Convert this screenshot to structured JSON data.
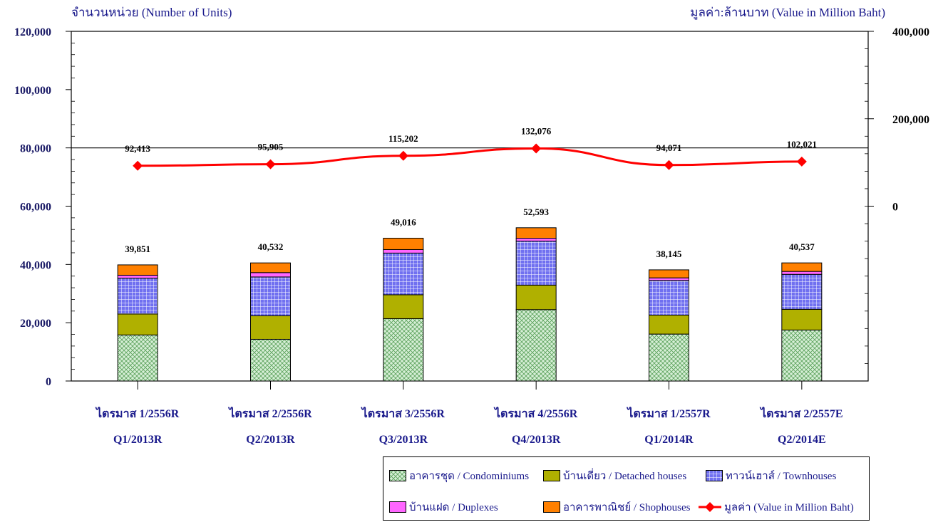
{
  "header": {
    "left_title": "จำนวนหน่วย (Number of Units)",
    "right_title": "มูลค่า:ล้านบาท (Value in Million Baht)"
  },
  "chart_data": {
    "type": "bar",
    "stacked": true,
    "categories": [
      {
        "th": "ไตรมาส 1/2556R",
        "en": "Q1/2013R"
      },
      {
        "th": "ไตรมาส 2/2556R",
        "en": "Q2/2013R"
      },
      {
        "th": "ไตรมาส 3/2556R",
        "en": "Q3/2013R"
      },
      {
        "th": "ไตรมาส 4/2556R",
        "en": "Q4/2013R"
      },
      {
        "th": "ไตรมาส 1/2557R",
        "en": "Q1/2014R"
      },
      {
        "th": "ไตรมาส 2/2557E",
        "en": "Q2/2014E"
      }
    ],
    "series": [
      {
        "name": "อาคารชุด / Condominiums",
        "color": "#c4e6c4",
        "pattern": "crosshatch-green",
        "values": [
          15800,
          14300,
          21400,
          24500,
          16100,
          17500
        ]
      },
      {
        "name": "บ้านเดี่ยว / Detached houses",
        "color": "#b0b000",
        "pattern": "solid-olive",
        "values": [
          7200,
          8100,
          8200,
          8400,
          6500,
          7100
        ]
      },
      {
        "name": "ทาวน์เฮาส์ / Townhouses",
        "color": "#5a5ae6",
        "pattern": "grid-blue",
        "values": [
          12300,
          13300,
          14300,
          15100,
          11900,
          12000
        ]
      },
      {
        "name": "บ้านแฝด / Duplexes",
        "color": "#ff66ff",
        "pattern": "solid-pink",
        "values": [
          1000,
          1500,
          1200,
          1000,
          900,
          1000
        ]
      },
      {
        "name": "อาคารพาณิชย์ / Shophouses",
        "color": "#ff8000",
        "pattern": "solid-orange",
        "values": [
          3551,
          3332,
          3916,
          3593,
          2745,
          2937
        ]
      }
    ],
    "totals": [
      39851,
      40532,
      49016,
      52593,
      38145,
      40537
    ],
    "totals_labels": [
      "39,851",
      "40,532",
      "49,016",
      "52,593",
      "38,145",
      "40,537"
    ],
    "line_series": {
      "name": "มูลค่า (Value in Million Baht)",
      "color": "#ff0000",
      "values": [
        92413,
        95905,
        115202,
        132076,
        94071,
        102021
      ],
      "labels": [
        "92,413",
        "95,905",
        "115,202",
        "132,076",
        "94,071",
        "102,021"
      ]
    },
    "left_axis": {
      "ylim": [
        0,
        120000
      ],
      "ticks": [
        "0",
        "20,000",
        "40,000",
        "60,000",
        "80,000",
        "100,000",
        "120,000"
      ]
    },
    "right_axis": {
      "ylim": [
        -400000,
        400000
      ],
      "ticks": [
        "0",
        "200,000",
        "400,000"
      ],
      "tick_values": [
        0,
        200000,
        400000
      ]
    },
    "legend": {
      "placement": "bottom-right",
      "items": [
        {
          "label": "อาคารชุด / Condominiums",
          "kind": "swatch",
          "color": "#c4e6c4"
        },
        {
          "label": "บ้านเดี่ยว / Detached houses",
          "kind": "swatch",
          "color": "#b0b000"
        },
        {
          "label": "ทาวน์เฮาส์ / Townhouses",
          "kind": "swatch",
          "color": "#5a5ae6"
        },
        {
          "label": "บ้านแฝด / Duplexes",
          "kind": "swatch",
          "color": "#ff66ff"
        },
        {
          "label": "อาคารพาณิชย์ / Shophouses",
          "kind": "swatch",
          "color": "#ff8000"
        },
        {
          "label": "มูลค่า (Value in Million Baht)",
          "kind": "line",
          "color": "#ff0000"
        }
      ]
    }
  }
}
